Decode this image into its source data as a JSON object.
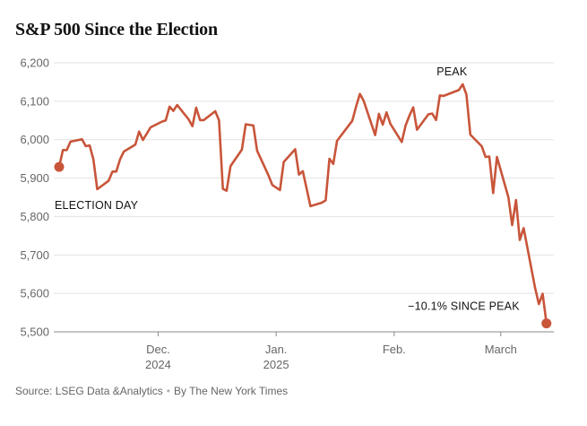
{
  "chart_data": {
    "type": "line",
    "title": "S&P 500 Since the Election",
    "xlabel": "",
    "ylabel": "",
    "ylim": [
      5500,
      6200
    ],
    "yticks": [
      5500,
      5600,
      5700,
      5800,
      5900,
      6000,
      6100,
      6200
    ],
    "ytick_labels": [
      "5,500",
      "5,600",
      "5,700",
      "5,800",
      "5,900",
      "6,000",
      "6,100",
      "6,200"
    ],
    "xlim": [
      "2024-11-05",
      "2025-03-14"
    ],
    "xticks": [
      {
        "date": "2024-12-01",
        "line1": "Dec.",
        "line2": "2024"
      },
      {
        "date": "2025-01-01",
        "line1": "Jan.",
        "line2": "2025"
      },
      {
        "date": "2025-02-01",
        "line1": "Feb.",
        "line2": ""
      },
      {
        "date": "2025-03-01",
        "line1": "March",
        "line2": ""
      }
    ],
    "grid": true,
    "line_color": "#c8553a",
    "series": [
      {
        "name": "S&P 500",
        "points": [
          [
            "2024-11-05",
            5929
          ],
          [
            "2024-11-06",
            5973
          ],
          [
            "2024-11-07",
            5973
          ],
          [
            "2024-11-08",
            5995
          ],
          [
            "2024-11-11",
            6001
          ],
          [
            "2024-11-12",
            5983
          ],
          [
            "2024-11-13",
            5985
          ],
          [
            "2024-11-14",
            5949
          ],
          [
            "2024-11-15",
            5871
          ],
          [
            "2024-11-18",
            5893
          ],
          [
            "2024-11-19",
            5917
          ],
          [
            "2024-11-20",
            5917
          ],
          [
            "2024-11-21",
            5949
          ],
          [
            "2024-11-22",
            5969
          ],
          [
            "2024-11-25",
            5987
          ],
          [
            "2024-11-26",
            6021
          ],
          [
            "2024-11-27",
            5999
          ],
          [
            "2024-11-29",
            6032
          ],
          [
            "2024-12-02",
            6047
          ],
          [
            "2024-12-03",
            6050
          ],
          [
            "2024-12-04",
            6086
          ],
          [
            "2024-12-05",
            6075
          ],
          [
            "2024-12-06",
            6090
          ],
          [
            "2024-12-09",
            6053
          ],
          [
            "2024-12-10",
            6035
          ],
          [
            "2024-12-11",
            6083
          ],
          [
            "2024-12-12",
            6051
          ],
          [
            "2024-12-13",
            6051
          ],
          [
            "2024-12-16",
            6074
          ],
          [
            "2024-12-17",
            6050
          ],
          [
            "2024-12-18",
            5872
          ],
          [
            "2024-12-19",
            5867
          ],
          [
            "2024-12-20",
            5931
          ],
          [
            "2024-12-23",
            5974
          ],
          [
            "2024-12-24",
            6040
          ],
          [
            "2024-12-26",
            6037
          ],
          [
            "2024-12-27",
            5971
          ],
          [
            "2024-12-30",
            5907
          ],
          [
            "2024-12-31",
            5882
          ],
          [
            "2025-01-02",
            5869
          ],
          [
            "2025-01-03",
            5942
          ],
          [
            "2025-01-06",
            5975
          ],
          [
            "2025-01-07",
            5909
          ],
          [
            "2025-01-08",
            5918
          ],
          [
            "2025-01-10",
            5827
          ],
          [
            "2025-01-13",
            5836
          ],
          [
            "2025-01-14",
            5842
          ],
          [
            "2025-01-15",
            5950
          ],
          [
            "2025-01-16",
            5937
          ],
          [
            "2025-01-17",
            5997
          ],
          [
            "2025-01-21",
            6049
          ],
          [
            "2025-01-22",
            6086
          ],
          [
            "2025-01-23",
            6119
          ],
          [
            "2025-01-24",
            6101
          ],
          [
            "2025-01-27",
            6012
          ],
          [
            "2025-01-28",
            6067
          ],
          [
            "2025-01-29",
            6039
          ],
          [
            "2025-01-30",
            6071
          ],
          [
            "2025-01-31",
            6041
          ],
          [
            "2025-02-03",
            5994
          ],
          [
            "2025-02-04",
            6037
          ],
          [
            "2025-02-05",
            6062
          ],
          [
            "2025-02-06",
            6084
          ],
          [
            "2025-02-07",
            6026
          ],
          [
            "2025-02-10",
            6066
          ],
          [
            "2025-02-11",
            6068
          ],
          [
            "2025-02-12",
            6051
          ],
          [
            "2025-02-13",
            6115
          ],
          [
            "2025-02-14",
            6114
          ],
          [
            "2025-02-18",
            6129
          ],
          [
            "2025-02-19",
            6144
          ],
          [
            "2025-02-20",
            6117
          ],
          [
            "2025-02-21",
            6013
          ],
          [
            "2025-02-24",
            5983
          ],
          [
            "2025-02-25",
            5955
          ],
          [
            "2025-02-26",
            5956
          ],
          [
            "2025-02-27",
            5861
          ],
          [
            "2025-02-28",
            5955
          ],
          [
            "2025-03-03",
            5850
          ],
          [
            "2025-03-04",
            5778
          ],
          [
            "2025-03-05",
            5843
          ],
          [
            "2025-03-06",
            5739
          ],
          [
            "2025-03-07",
            5770
          ],
          [
            "2025-03-10",
            5615
          ],
          [
            "2025-03-11",
            5572
          ],
          [
            "2025-03-12",
            5599
          ],
          [
            "2025-03-13",
            5522
          ]
        ]
      }
    ],
    "markers": [
      {
        "date": "2024-11-05",
        "value": 5929
      },
      {
        "date": "2025-03-13",
        "value": 5522
      }
    ],
    "annotations": [
      {
        "text": "ELECTION DAY",
        "date": "2024-11-05",
        "value": 5929
      },
      {
        "text": "PEAK",
        "date": "2025-02-19",
        "value": 6144
      },
      {
        "text": "−10.1% SINCE PEAK",
        "date": "2025-03-13",
        "value": 5522
      }
    ]
  },
  "footer": {
    "source": "Source: LSEG Data &Analytics",
    "byline": "By The New York Times"
  }
}
